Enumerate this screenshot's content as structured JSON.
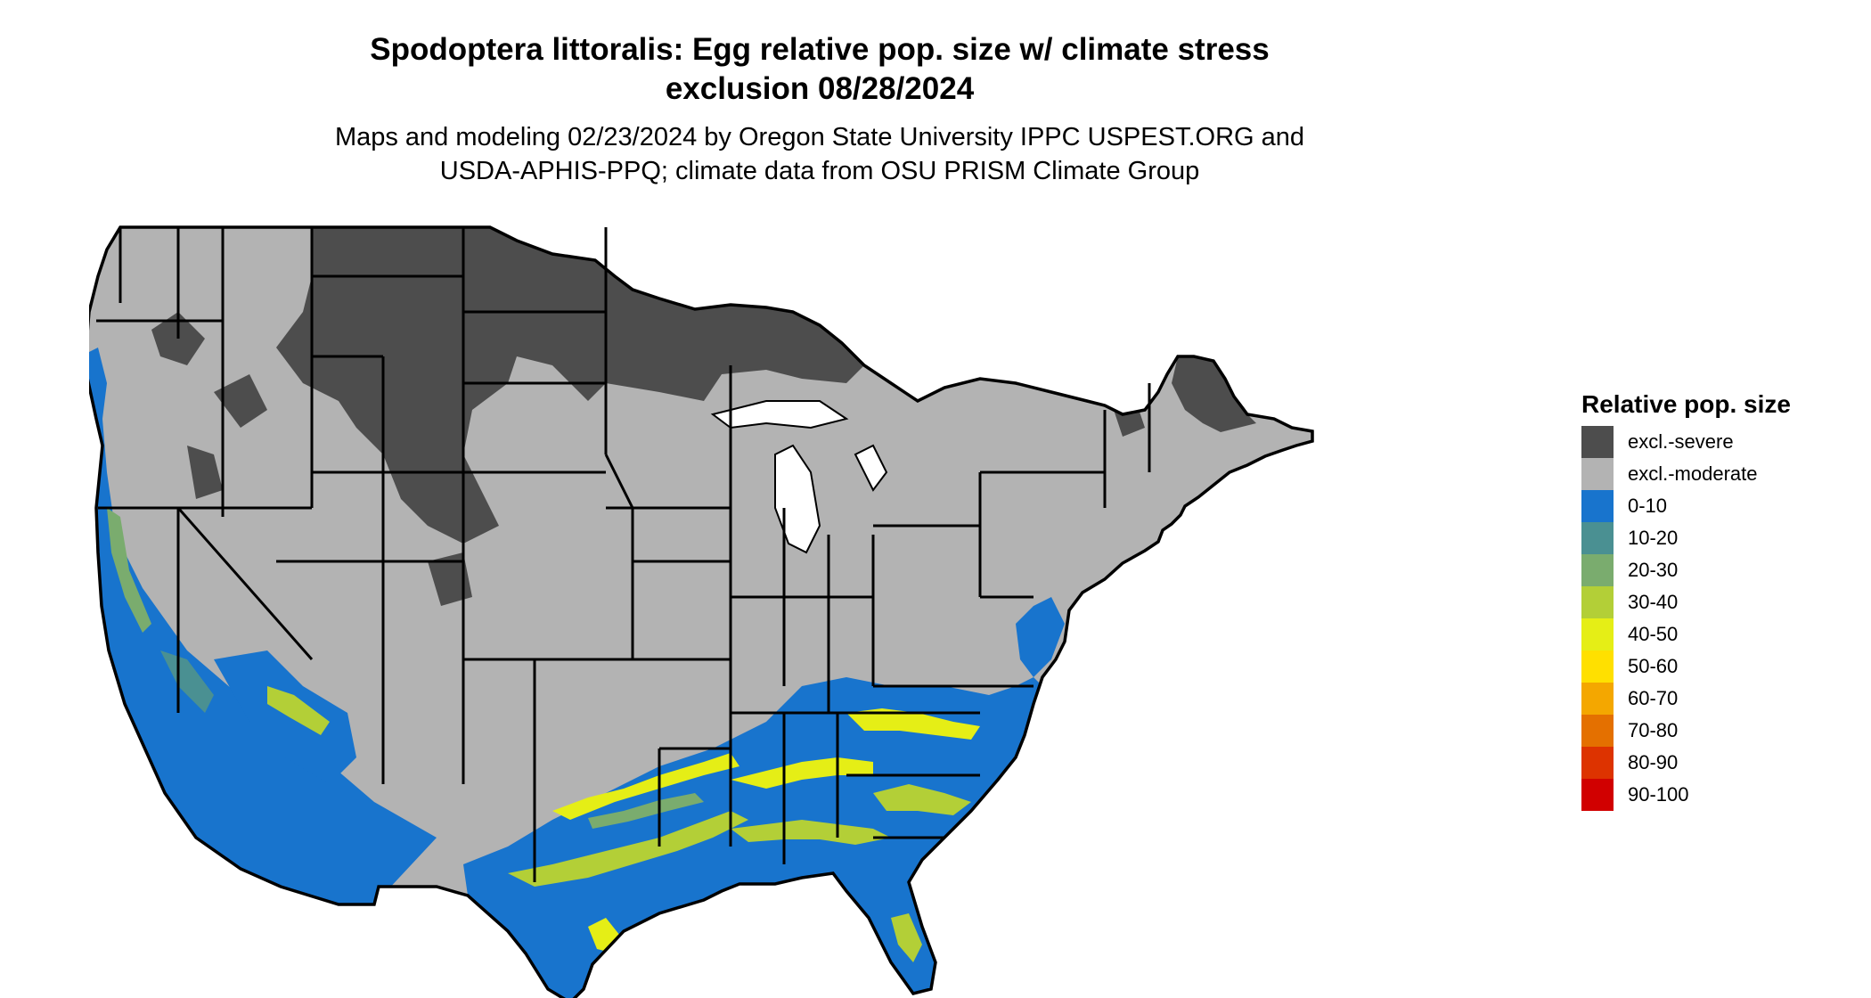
{
  "title_line1": "Spodoptera littoralis: Egg relative pop. size w/ climate stress",
  "title_line2": "exclusion 08/28/2024",
  "subtitle_line1": "Maps and modeling 02/23/2024 by Oregon State University IPPC USPEST.ORG and",
  "subtitle_line2": "USDA-APHIS-PPQ; climate data from OSU PRISM Climate Group",
  "legend": {
    "title": "Relative pop. size",
    "items": [
      {
        "label": "excl.-severe",
        "color": "#4d4d4d"
      },
      {
        "label": "excl.-moderate",
        "color": "#b3b3b3"
      },
      {
        "label": "0-10",
        "color": "#1874cd"
      },
      {
        "label": "10-20",
        "color": "#4a9092"
      },
      {
        "label": "20-30",
        "color": "#7aac6e"
      },
      {
        "label": "30-40",
        "color": "#b3cf37"
      },
      {
        "label": "40-50",
        "color": "#e5ee16"
      },
      {
        "label": "50-60",
        "color": "#ffe000"
      },
      {
        "label": "60-70",
        "color": "#f4a700"
      },
      {
        "label": "70-80",
        "color": "#e47000"
      },
      {
        "label": "80-90",
        "color": "#dd3300"
      },
      {
        "label": "90-100",
        "color": "#d10000"
      }
    ]
  },
  "map_regions": {
    "severe_exclusion": "northern plains, northern Rockies, upper Midwest, northern Maine",
    "moderate_exclusion": "most of the interior and northeastern US",
    "suitable": "Pacific coast, desert southwest, Gulf coast, southeastern US, Florida"
  }
}
